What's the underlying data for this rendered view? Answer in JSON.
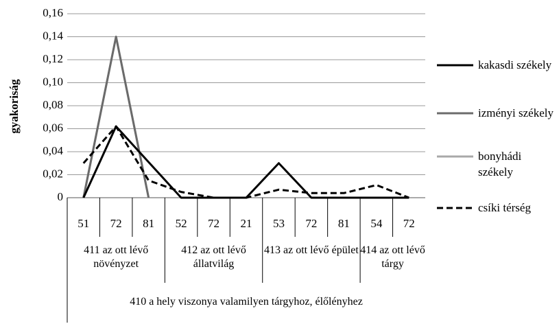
{
  "chart_data": {
    "type": "line",
    "y_label": "gyakoriság",
    "category_supergroup": "410 a hely viszonya valamilyen tárgyhoz, élőlényhez",
    "category_groups": [
      {
        "name": "411 az ott lévő növényzet",
        "categories": [
          "51",
          "72",
          "81"
        ]
      },
      {
        "name": "412 az ott lévő állatvilág",
        "categories": [
          "52",
          "72",
          "21"
        ]
      },
      {
        "name": "413 az ott lévő épület",
        "categories": [
          "53",
          "72",
          "81"
        ]
      },
      {
        "name": "414 az ott lévő tárgy",
        "categories": [
          "54",
          "72"
        ]
      }
    ],
    "series": [
      {
        "name": "kakasdi székely",
        "color": "#000000",
        "style": "solid",
        "values": [
          0,
          0.062,
          0.031,
          0,
          0,
          0,
          0.03,
          0,
          0,
          0,
          0
        ]
      },
      {
        "name": "izményi székely",
        "color": "#6b6b6b",
        "style": "solid",
        "values": [
          0,
          0.14,
          0,
          null,
          null,
          null,
          null,
          null,
          null,
          null,
          null
        ]
      },
      {
        "name": "bonyhádi székely",
        "color": "#a8a8a8",
        "style": "solid",
        "values": [
          0,
          0.14,
          0,
          null,
          null,
          null,
          null,
          null,
          null,
          null,
          null
        ]
      },
      {
        "name": "csíki térség",
        "color": "#000000",
        "style": "dashed",
        "values": [
          0.03,
          0.062,
          0.015,
          0.005,
          0,
          0,
          0.007,
          0.004,
          0.004,
          0.011,
          0
        ]
      }
    ],
    "ylim": [
      0,
      0.16
    ],
    "yticks": [
      0,
      {
        "value": 0.02,
        "label": "0,02"
      },
      {
        "value": 0.04,
        "label": "0,04"
      },
      {
        "value": 0.06,
        "label": "0,06"
      },
      {
        "value": 0.08,
        "label": "0,08"
      },
      {
        "value": 0.1,
        "label": "0,10"
      },
      {
        "value": 0.12,
        "label": "0,12"
      },
      {
        "value": 0.14,
        "label": "0,14"
      },
      {
        "value": 0.16,
        "label": "0,16"
      }
    ],
    "grid": true,
    "legend": "right"
  }
}
